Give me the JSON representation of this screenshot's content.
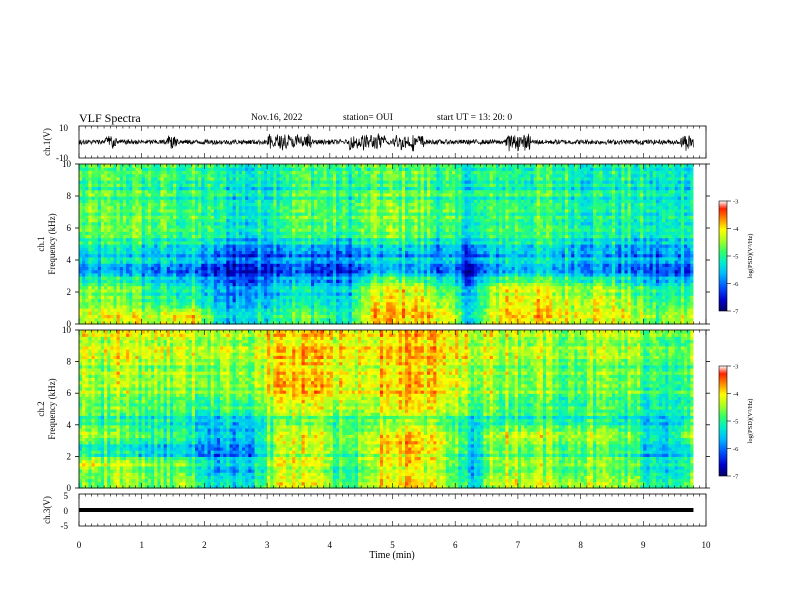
{
  "header": {
    "title": "VLF Spectra",
    "date": "Nov.16, 2022",
    "station": "station= OUI",
    "start_ut": "start  UT  =  13: 20: 0"
  },
  "colors": {
    "waveform": "#000000",
    "colormap": [
      "#000066",
      "#0000cc",
      "#0055ff",
      "#00bbff",
      "#00eecc",
      "#33ff66",
      "#aaff22",
      "#ffff00",
      "#ff8800",
      "#ff2200",
      "#ffffff"
    ]
  },
  "chart_data": [
    {
      "type": "line",
      "name": "ch1-waveform",
      "ylabel": "ch.1(V)",
      "ylim": [
        -10,
        10
      ],
      "yticks": [
        "10",
        "-10"
      ],
      "x_unit": "min",
      "burst_regions_min": [
        [
          0.4,
          0.6
        ],
        [
          1.4,
          1.6
        ],
        [
          3.0,
          3.7
        ],
        [
          4.3,
          4.9
        ],
        [
          5.0,
          5.5
        ],
        [
          6.8,
          7.2
        ],
        [
          9.6,
          9.8
        ]
      ],
      "typical_amplitude_V": 1.5,
      "burst_amplitude_V": 5
    },
    {
      "type": "heatmap",
      "name": "ch1-spectrogram",
      "ylabel_line1": "ch.1",
      "ylabel_line2": "Frequency (kHz)",
      "ylim": [
        0,
        10
      ],
      "yticks": [
        "0",
        "2",
        "4",
        "6",
        "8",
        "10"
      ],
      "xlim": [
        0,
        9.8
      ],
      "colorbar": {
        "label": "log(PSD)(V²/Hz)",
        "ticks": [
          "-3",
          "-4",
          "-5",
          "-6",
          "-7"
        ],
        "range": [
          -7,
          -3
        ]
      },
      "time_bins_min": [
        0,
        0.5,
        1,
        1.5,
        2,
        2.5,
        3,
        3.5,
        4,
        4.5,
        5,
        5.5,
        6,
        6.5,
        7,
        7.5,
        8,
        8.5,
        9,
        9.5
      ],
      "freq_bins_khz": [
        0.5,
        1.5,
        2.5,
        3.5,
        4.5,
        5.5,
        6.5,
        7.5,
        8.5,
        9.5
      ],
      "log_psd": [
        [
          -4.6,
          -4.2,
          -4.7,
          -4.0,
          -5.6,
          -5.5,
          -4.9,
          -4.9,
          -5.5,
          -4.0,
          -4.0,
          -4.1,
          -5.6,
          -4.0,
          -4.1,
          -4.3,
          -4.2,
          -4.4,
          -5.0,
          -4.3
        ],
        [
          -4.8,
          -4.7,
          -5.2,
          -5.1,
          -5.9,
          -5.8,
          -5.3,
          -5.3,
          -5.6,
          -4.2,
          -4.1,
          -4.5,
          -5.7,
          -4.1,
          -4.2,
          -4.4,
          -4.3,
          -4.6,
          -5.2,
          -4.8
        ],
        [
          -5.2,
          -5.0,
          -5.6,
          -5.5,
          -6.2,
          -6.2,
          -5.6,
          -5.8,
          -6.0,
          -4.8,
          -4.6,
          -5.2,
          -6.1,
          -4.6,
          -4.7,
          -4.9,
          -4.9,
          -5.2,
          -5.8,
          -5.3
        ],
        [
          -5.9,
          -5.8,
          -6.0,
          -6.0,
          -6.5,
          -6.5,
          -6.1,
          -6.2,
          -6.4,
          -5.8,
          -5.7,
          -6.0,
          -6.5,
          -5.7,
          -5.7,
          -5.8,
          -5.9,
          -6.0,
          -6.3,
          -6.1
        ],
        [
          -5.6,
          -5.3,
          -5.6,
          -5.5,
          -6.0,
          -6.1,
          -5.8,
          -5.9,
          -6.1,
          -5.8,
          -5.6,
          -5.8,
          -6.1,
          -5.5,
          -5.5,
          -5.6,
          -5.7,
          -5.8,
          -5.9,
          -5.6
        ],
        [
          -5.2,
          -5.0,
          -5.2,
          -5.2,
          -5.6,
          -5.8,
          -5.2,
          -5.2,
          -5.5,
          -5.0,
          -5.0,
          -5.3,
          -5.7,
          -5.2,
          -5.2,
          -5.3,
          -5.4,
          -5.5,
          -5.7,
          -5.3
        ],
        [
          -5.0,
          -4.9,
          -5.0,
          -5.1,
          -5.4,
          -5.6,
          -5.0,
          -4.9,
          -5.2,
          -4.9,
          -4.8,
          -5.1,
          -5.5,
          -5.1,
          -5.1,
          -5.2,
          -5.3,
          -5.3,
          -5.5,
          -5.2
        ],
        [
          -5.0,
          -5.0,
          -5.0,
          -5.1,
          -5.3,
          -5.5,
          -5.0,
          -4.9,
          -5.2,
          -4.8,
          -4.8,
          -5.0,
          -5.4,
          -5.0,
          -5.1,
          -5.2,
          -5.2,
          -5.3,
          -5.5,
          -5.2
        ],
        [
          -5.1,
          -5.0,
          -5.1,
          -5.2,
          -5.3,
          -5.5,
          -5.1,
          -5.0,
          -5.2,
          -5.0,
          -4.9,
          -5.1,
          -5.4,
          -5.1,
          -5.2,
          -5.2,
          -5.3,
          -5.3,
          -5.5,
          -5.3
        ],
        [
          -5.2,
          -5.1,
          -5.2,
          -5.2,
          -5.4,
          -5.6,
          -5.2,
          -5.1,
          -5.3,
          -5.1,
          -5.0,
          -5.2,
          -5.5,
          -5.2,
          -5.3,
          -5.3,
          -5.4,
          -5.4,
          -5.6,
          -5.4
        ]
      ]
    },
    {
      "type": "heatmap",
      "name": "ch2-spectrogram",
      "ylabel_line1": "ch.2",
      "ylabel_line2": "Frequency (kHz)",
      "ylim": [
        0,
        10
      ],
      "yticks": [
        "0",
        "2",
        "4",
        "6",
        "8",
        "10"
      ],
      "xlim": [
        0,
        9.8
      ],
      "colorbar": {
        "label": "log(PSD)(V²/Hz)",
        "ticks": [
          "-3",
          "-4",
          "-5",
          "-6",
          "-7"
        ],
        "range": [
          -7,
          -3
        ]
      },
      "time_bins_min": [
        0,
        0.5,
        1,
        1.5,
        2,
        2.5,
        3,
        3.5,
        4,
        4.5,
        5,
        5.5,
        6,
        6.5,
        7,
        7.5,
        8,
        8.5,
        9,
        9.5
      ],
      "freq_bins_khz": [
        0.5,
        1.5,
        2.5,
        3.5,
        4.5,
        5.5,
        6.5,
        7.5,
        8.5,
        9.5
      ],
      "log_psd": [
        [
          -5.0,
          -4.6,
          -5.0,
          -4.8,
          -5.7,
          -5.5,
          -4.3,
          -4.5,
          -5.3,
          -4.3,
          -4.2,
          -4.5,
          -5.6,
          -4.4,
          -4.5,
          -4.6,
          -4.7,
          -4.8,
          -5.4,
          -4.9
        ],
        [
          -4.5,
          -4.6,
          -4.8,
          -5.0,
          -5.8,
          -5.6,
          -4.4,
          -4.6,
          -5.4,
          -4.4,
          -4.3,
          -4.7,
          -5.7,
          -4.6,
          -4.7,
          -4.8,
          -4.9,
          -5.0,
          -5.6,
          -5.1
        ],
        [
          -5.4,
          -5.6,
          -5.8,
          -5.9,
          -6.2,
          -6.0,
          -4.5,
          -4.6,
          -5.2,
          -4.2,
          -4.1,
          -4.4,
          -5.6,
          -4.7,
          -4.9,
          -5.0,
          -5.1,
          -5.3,
          -5.9,
          -5.4
        ],
        [
          -4.6,
          -4.8,
          -5.0,
          -5.2,
          -5.8,
          -5.6,
          -4.4,
          -4.5,
          -5.0,
          -4.3,
          -4.2,
          -4.5,
          -5.4,
          -4.4,
          -4.4,
          -4.5,
          -4.6,
          -4.8,
          -5.6,
          -4.5
        ],
        [
          -5.0,
          -5.1,
          -5.2,
          -5.3,
          -5.4,
          -5.3,
          -4.7,
          -4.8,
          -5.0,
          -4.6,
          -4.6,
          -4.8,
          -5.2,
          -5.0,
          -5.1,
          -5.1,
          -5.2,
          -5.3,
          -5.5,
          -5.1
        ],
        [
          -4.8,
          -4.8,
          -4.9,
          -5.0,
          -5.0,
          -4.9,
          -4.2,
          -4.3,
          -4.6,
          -4.2,
          -4.1,
          -4.3,
          -4.8,
          -4.8,
          -4.9,
          -5.0,
          -5.0,
          -5.1,
          -5.3,
          -5.0
        ],
        [
          -4.6,
          -4.5,
          -4.7,
          -4.7,
          -4.8,
          -4.7,
          -3.9,
          -4.0,
          -4.4,
          -4.1,
          -4.0,
          -4.2,
          -4.6,
          -4.6,
          -4.7,
          -4.8,
          -4.8,
          -4.9,
          -5.1,
          -4.9
        ],
        [
          -4.6,
          -4.4,
          -4.6,
          -4.6,
          -4.7,
          -4.6,
          -4.0,
          -4.1,
          -4.4,
          -4.1,
          -4.0,
          -4.2,
          -4.5,
          -4.5,
          -4.6,
          -4.7,
          -4.8,
          -4.8,
          -5.0,
          -4.8
        ],
        [
          -4.5,
          -4.4,
          -4.5,
          -4.6,
          -4.6,
          -4.6,
          -4.1,
          -4.2,
          -4.4,
          -4.1,
          -4.1,
          -4.2,
          -4.5,
          -4.5,
          -4.6,
          -4.7,
          -4.7,
          -4.8,
          -4.9,
          -4.8
        ],
        [
          -4.5,
          -4.4,
          -4.5,
          -4.5,
          -4.6,
          -4.6,
          -4.2,
          -4.2,
          -4.4,
          -4.2,
          -4.1,
          -4.2,
          -4.5,
          -4.5,
          -4.6,
          -4.7,
          -4.7,
          -4.7,
          -4.9,
          -4.8
        ]
      ]
    },
    {
      "type": "line",
      "name": "ch3-signal",
      "ylabel": "ch.3(V)",
      "ylim": [
        -5,
        5
      ],
      "yticks": [
        "5",
        "0",
        "-5"
      ],
      "xlabel": "Time (min)",
      "xlim": [
        0,
        10
      ],
      "xticks": [
        "0",
        "1",
        "2",
        "3",
        "4",
        "5",
        "6",
        "7",
        "8",
        "9",
        "10"
      ],
      "x": [
        0,
        9.8
      ],
      "y": [
        0,
        0
      ]
    }
  ]
}
